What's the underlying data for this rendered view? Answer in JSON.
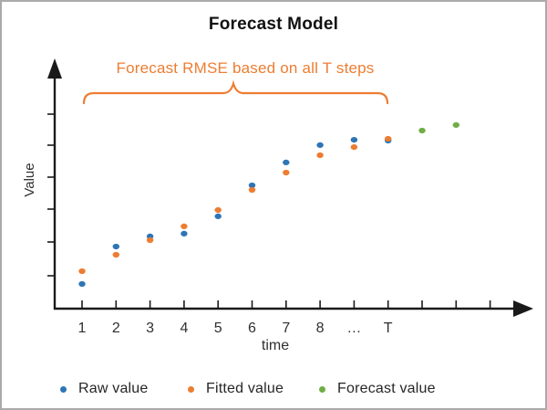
{
  "window": {
    "background": "#ffffff",
    "border_color": "#aaaaaa"
  },
  "chart_data": {
    "type": "scatter",
    "title": "Forecast Model",
    "annotation": "Forecast RMSE based on all T steps",
    "annotation_color": "#ED7D31",
    "axis_color": "#1a1a1a",
    "xlabel": "time",
    "ylabel": "Value",
    "x_tick_labels": [
      "1",
      "2",
      "3",
      "4",
      "5",
      "6",
      "7",
      "8",
      "…",
      "T",
      "",
      "",
      ""
    ],
    "ylim": [
      0,
      100
    ],
    "grid": false,
    "legend_position": "bottom",
    "brace_span_ticks": [
      1,
      10
    ],
    "series": [
      {
        "name": "Raw value",
        "color": "#2E75B6",
        "points": [
          [
            1,
            12.5
          ],
          [
            2,
            31.5
          ],
          [
            3,
            36.6
          ],
          [
            4,
            38.0
          ],
          [
            5,
            46.8
          ],
          [
            6,
            62.5
          ],
          [
            7,
            74.1
          ],
          [
            8,
            82.9
          ],
          [
            9,
            85.6
          ],
          [
            10,
            85.2
          ]
        ]
      },
      {
        "name": "Fitted value",
        "color": "#ED7D31",
        "points": [
          [
            1,
            19.0
          ],
          [
            2,
            27.3
          ],
          [
            3,
            34.7
          ],
          [
            4,
            41.7
          ],
          [
            5,
            50.0
          ],
          [
            6,
            60.2
          ],
          [
            7,
            69.0
          ],
          [
            8,
            77.8
          ],
          [
            9,
            81.9
          ],
          [
            10,
            86.1
          ]
        ]
      },
      {
        "name": "Forecast value",
        "color": "#70AD47",
        "points": [
          [
            11,
            90.3
          ],
          [
            12,
            93.1
          ]
        ]
      }
    ]
  },
  "legend": {
    "items": [
      {
        "label": "Raw value",
        "color": "#2E75B6"
      },
      {
        "label": "Fitted value",
        "color": "#ED7D31"
      },
      {
        "label": "Forecast value",
        "color": "#70AD47"
      }
    ]
  }
}
